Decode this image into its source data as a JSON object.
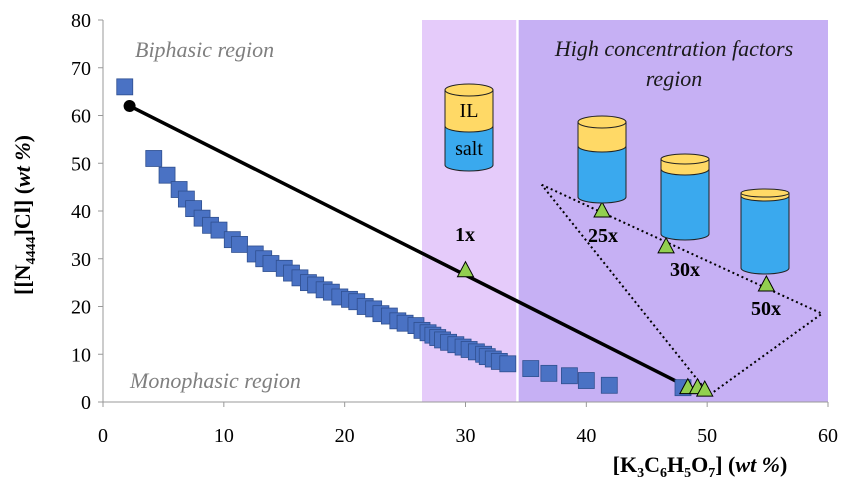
{
  "chart_data": {
    "type": "scatter",
    "xlabel": [
      "[K",
      "3",
      "C",
      "6",
      "H",
      "5",
      "O",
      "7",
      "] (",
      "wt %",
      ")"
    ],
    "ylabel": [
      "[[N",
      "4444",
      "]Cl] (",
      "wt %",
      ")"
    ],
    "xlim": [
      0,
      60
    ],
    "ylim": [
      0,
      80
    ],
    "xticks": [
      0,
      10,
      20,
      30,
      40,
      50,
      60
    ],
    "yticks": [
      0,
      10,
      20,
      30,
      40,
      50,
      60,
      70,
      80
    ],
    "regions": [
      {
        "x": [
          26.4,
          34.2
        ],
        "color": "#e5cbfa"
      },
      {
        "x": [
          34.4,
          60
        ],
        "color": "#c6b0f4"
      }
    ],
    "region_labels": [
      "Biphasic region",
      "Monophasic region",
      "High concentration factors",
      "region"
    ],
    "series": [
      {
        "marker": "square",
        "color": "#4a72c4",
        "x": [
          1.8,
          4.2,
          5.3,
          6.3,
          6.9,
          7.5,
          8.2,
          8.9,
          9.6,
          10.7,
          11.3,
          12.6,
          13.3,
          13.9,
          15,
          15.6,
          16.3,
          17,
          17.6,
          18.3,
          18.9,
          19.6,
          20.4,
          21,
          21.7,
          22.4,
          23,
          23.7,
          24.4,
          25,
          25.9,
          26.4,
          26.9,
          27.3,
          27.7,
          28.1,
          28.6,
          29.2,
          29.8,
          30.3,
          30.9,
          31.5,
          31.8,
          32.3,
          32.8,
          33.5,
          35.4,
          36.9,
          38.6,
          40,
          41.9,
          48
        ],
        "values": [
          66,
          51,
          47.5,
          44.5,
          42.5,
          40.5,
          38.5,
          37,
          36,
          34,
          33,
          31,
          30,
          29,
          28,
          27,
          26,
          25,
          24.5,
          23.5,
          23,
          22,
          21.5,
          21,
          20,
          19.5,
          18.5,
          18,
          17,
          16.5,
          16,
          15,
          14.5,
          14,
          13.5,
          13,
          12.5,
          12,
          11.5,
          11,
          10.5,
          10,
          9.5,
          9,
          8.5,
          8,
          7,
          6,
          5.5,
          4.5,
          3.5,
          3
        ]
      },
      {
        "marker": "circle",
        "color": "#000000",
        "x": [
          2.2
        ],
        "values": [
          62
        ]
      },
      {
        "marker": "triangle",
        "color": "#92d050",
        "x": [
          30,
          41.3,
          46.6,
          54.9,
          48.4,
          49.2,
          49.8
        ],
        "values": [
          27.5,
          40,
          32.5,
          24.5,
          3,
          3,
          2.5
        ]
      }
    ],
    "lines": [
      {
        "style": "solid",
        "x": [
          2.2,
          48.5
        ],
        "values": [
          62,
          3
        ]
      },
      {
        "style": "dotted",
        "x": [
          36.3,
          59.5,
          50.2,
          36.3
        ],
        "values": [
          45.5,
          18.5,
          1.5,
          45.5
        ]
      }
    ],
    "annotations": [
      "1x",
      "25x",
      "30x",
      "50x"
    ],
    "icon_labels": [
      "IL",
      "salt"
    ]
  }
}
